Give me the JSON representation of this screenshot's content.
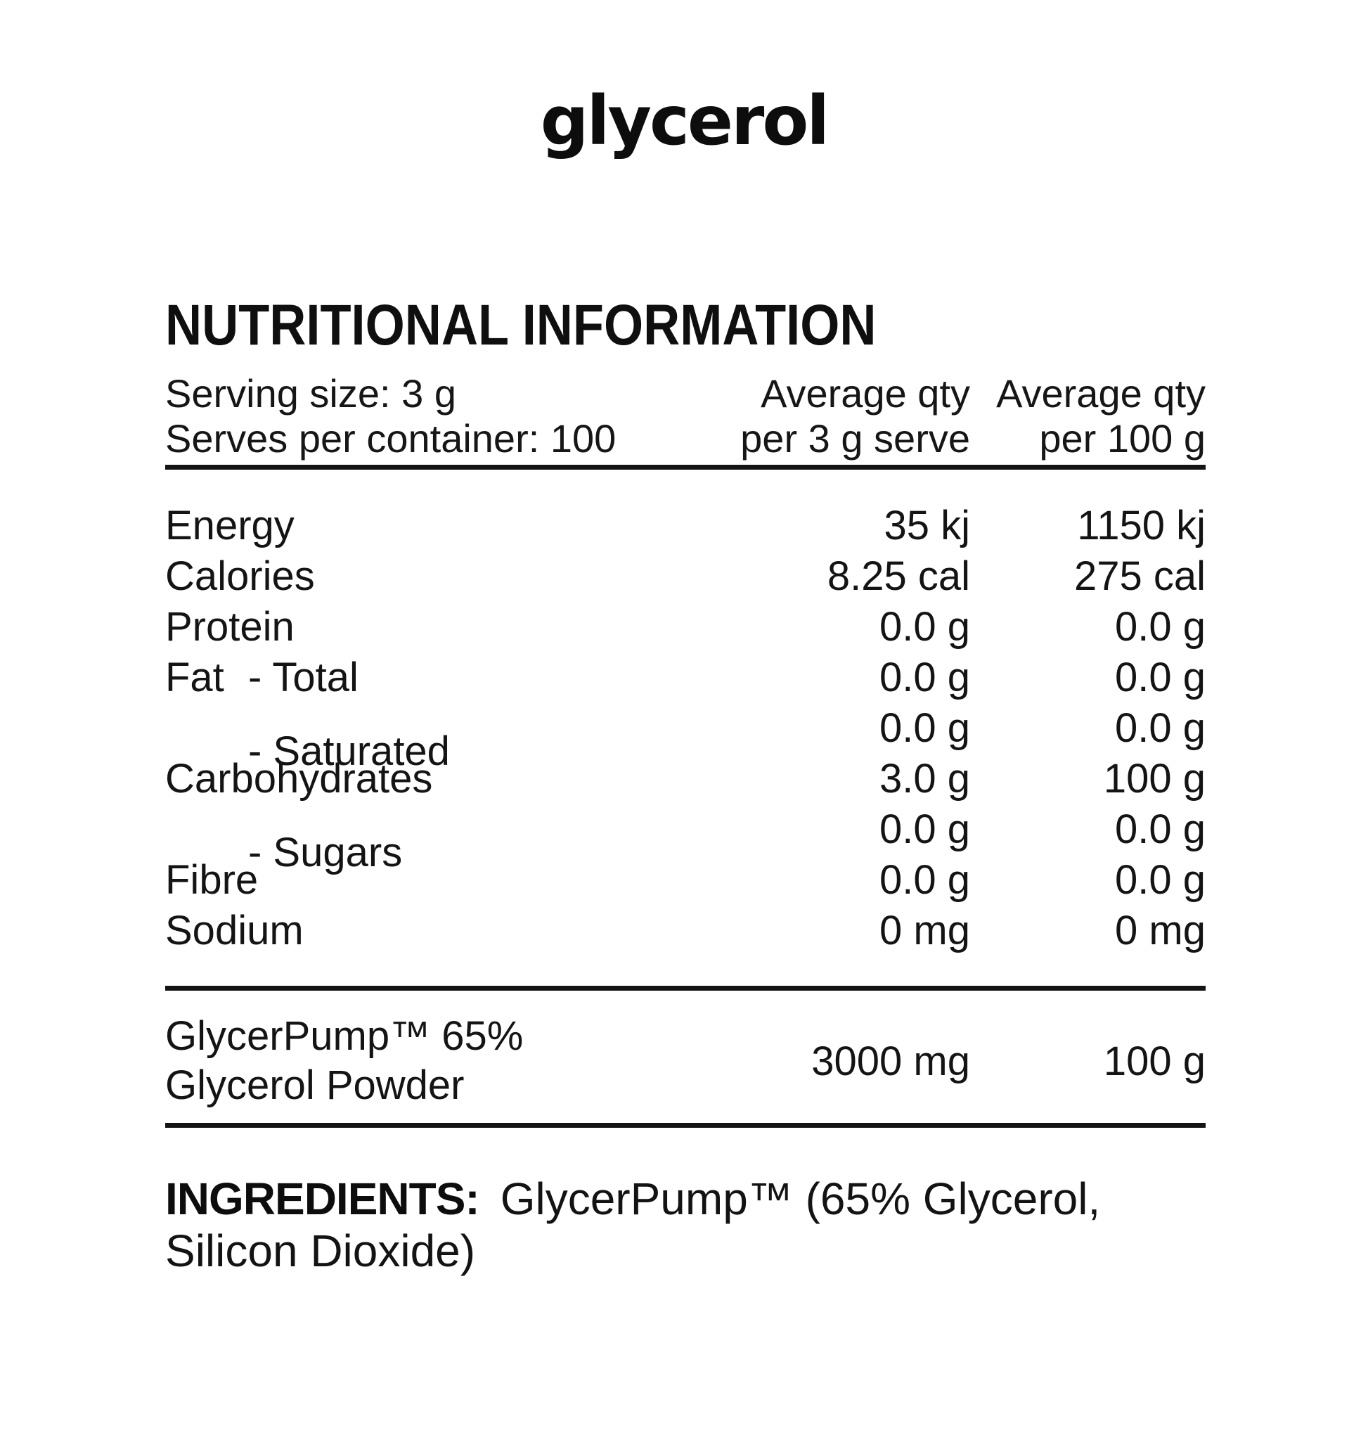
{
  "brand": {
    "logo_text": "glycerol"
  },
  "nutrition_panel": {
    "title": "NUTRITIONAL INFORMATION",
    "serving_info": {
      "serving_size": "Serving size: 3 g",
      "serves_per_container": "Serves per container: 100"
    },
    "columns": {
      "per_serve": {
        "line1": "Average qty",
        "line2": "per 3 g serve"
      },
      "per_100g": {
        "line1": "Average qty",
        "line2": "per 100 g"
      }
    },
    "rows": [
      {
        "label": "Energy",
        "sublabel": "",
        "per_serve": "35 kj",
        "per_100g": "1150 kj"
      },
      {
        "label": "Calories",
        "sublabel": "",
        "per_serve": "8.25 cal",
        "per_100g": "275 cal"
      },
      {
        "label": "Protein",
        "sublabel": "",
        "per_serve": "0.0 g",
        "per_100g": "0.0 g"
      },
      {
        "label": "Fat",
        "sublabel": "- Total",
        "per_serve": "0.0 g",
        "per_100g": "0.0 g"
      },
      {
        "label": "",
        "sublabel": "- Saturated",
        "per_serve": "0.0 g",
        "per_100g": "0.0 g"
      },
      {
        "label": "Carbohydrates",
        "sublabel": "",
        "per_serve": "3.0 g",
        "per_100g": "100 g"
      },
      {
        "label": "",
        "sublabel": "- Sugars",
        "per_serve": "0.0 g",
        "per_100g": "0.0 g"
      },
      {
        "label": "Fibre",
        "sublabel": "",
        "per_serve": "0.0 g",
        "per_100g": "0.0 g"
      },
      {
        "label": "Sodium",
        "sublabel": "",
        "per_serve": "0 mg",
        "per_100g": "0 mg"
      }
    ],
    "highlight_row": {
      "label_line1": "GlycerPump™ 65%",
      "label_line2": "Glycerol Powder",
      "per_serve": "3000 mg",
      "per_100g": "100 g"
    }
  },
  "ingredients": {
    "label": "INGREDIENTS:",
    "line1": "GlycerPump™ (65% Glycerol,",
    "line2": "Silicon Dioxide)"
  }
}
